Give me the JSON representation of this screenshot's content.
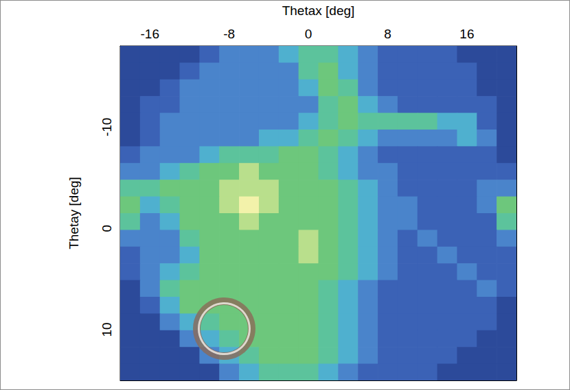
{
  "chart_data": {
    "type": "heatmap",
    "x_label": "Thetax [deg]",
    "y_label": "Thetay [deg]",
    "xlim": [
      -19,
      21
    ],
    "ylim": [
      15,
      -18
    ],
    "xticks": [
      -16,
      -8,
      0,
      8,
      16
    ],
    "yticks": [
      -10,
      0,
      10
    ],
    "xbins": [
      -19,
      -17,
      -15,
      -13,
      -11,
      -9,
      -7,
      -5,
      -3,
      -1,
      1,
      3,
      5,
      7,
      9,
      11,
      13,
      15,
      17,
      19,
      21
    ],
    "ybins": [
      -18,
      -16.35,
      -14.7,
      -13.05,
      -11.4,
      -9.75,
      -8.1,
      -6.45,
      -4.8,
      -3.15,
      -1.5,
      0.15,
      1.8,
      3.45,
      5.1,
      6.75,
      8.4,
      10.05,
      11.7,
      13.35,
      15
    ],
    "zlim": [
      0,
      7
    ],
    "z": [
      [
        0,
        0,
        0,
        0,
        1,
        2,
        2,
        2,
        3,
        4,
        4,
        3,
        2,
        1,
        1,
        1,
        1,
        0,
        0,
        0
      ],
      [
        0,
        0,
        0,
        1,
        2,
        2,
        2,
        2,
        2,
        4,
        5,
        3,
        2,
        1,
        1,
        1,
        1,
        1,
        0,
        0
      ],
      [
        0,
        0,
        1,
        2,
        2,
        2,
        2,
        2,
        2,
        3,
        5,
        4,
        2,
        1,
        1,
        1,
        1,
        1,
        0,
        0
      ],
      [
        0,
        1,
        1,
        2,
        2,
        2,
        2,
        2,
        2,
        2,
        4,
        5,
        3,
        2,
        1,
        1,
        1,
        1,
        1,
        0
      ],
      [
        0,
        1,
        2,
        2,
        2,
        2,
        2,
        2,
        2,
        3,
        4,
        5,
        4,
        4,
        4,
        4,
        3,
        3,
        1,
        0
      ],
      [
        0,
        1,
        2,
        2,
        2,
        2,
        2,
        3,
        3,
        4,
        5,
        4,
        3,
        2,
        2,
        2,
        2,
        3,
        2,
        0
      ],
      [
        1,
        2,
        2,
        2,
        3,
        4,
        4,
        4,
        5,
        5,
        4,
        3,
        2,
        1,
        1,
        1,
        1,
        1,
        1,
        0
      ],
      [
        2,
        2,
        3,
        4,
        5,
        5,
        6,
        5,
        5,
        5,
        4,
        3,
        2,
        2,
        1,
        1,
        1,
        1,
        1,
        1
      ],
      [
        4,
        4,
        5,
        5,
        5,
        6,
        6,
        6,
        5,
        5,
        5,
        4,
        3,
        2,
        1,
        1,
        1,
        1,
        2,
        2
      ],
      [
        5,
        3,
        4,
        5,
        5,
        6,
        7,
        6,
        5,
        5,
        5,
        4,
        3,
        2,
        2,
        1,
        1,
        1,
        2,
        5
      ],
      [
        4,
        2,
        3,
        5,
        5,
        5,
        6,
        5,
        5,
        5,
        5,
        4,
        3,
        2,
        2,
        1,
        1,
        1,
        1,
        4
      ],
      [
        2,
        2,
        2,
        4,
        5,
        5,
        5,
        5,
        5,
        6,
        5,
        4,
        3,
        2,
        1,
        2,
        1,
        1,
        1,
        2
      ],
      [
        1,
        2,
        2,
        3,
        5,
        5,
        5,
        5,
        5,
        6,
        5,
        4,
        3,
        2,
        1,
        1,
        2,
        1,
        1,
        1
      ],
      [
        1,
        2,
        3,
        4,
        5,
        5,
        5,
        5,
        5,
        5,
        5,
        4,
        3,
        2,
        1,
        1,
        1,
        2,
        1,
        1
      ],
      [
        0,
        2,
        4,
        5,
        5,
        5,
        5,
        5,
        5,
        5,
        4,
        3,
        2,
        1,
        1,
        1,
        1,
        1,
        2,
        1
      ],
      [
        0,
        1,
        3,
        5,
        5,
        5,
        5,
        5,
        5,
        5,
        4,
        3,
        2,
        1,
        1,
        1,
        1,
        1,
        1,
        0
      ],
      [
        0,
        0,
        2,
        3,
        4,
        5,
        5,
        5,
        5,
        5,
        4,
        3,
        2,
        1,
        1,
        1,
        1,
        1,
        1,
        0
      ],
      [
        0,
        0,
        0,
        2,
        3,
        4,
        5,
        5,
        5,
        5,
        4,
        3,
        2,
        1,
        1,
        1,
        1,
        1,
        0,
        0
      ],
      [
        0,
        0,
        0,
        0,
        2,
        3,
        4,
        5,
        5,
        5,
        4,
        3,
        2,
        1,
        1,
        1,
        1,
        0,
        0,
        0
      ],
      [
        0,
        0,
        0,
        0,
        0,
        2,
        3,
        4,
        4,
        4,
        3,
        2,
        1,
        1,
        1,
        1,
        0,
        0,
        0,
        0
      ]
    ],
    "markers": [
      {
        "x": -8.5,
        "y": 9.9,
        "marker": "ring",
        "color": "#8b6a58"
      }
    ],
    "grid": false
  }
}
